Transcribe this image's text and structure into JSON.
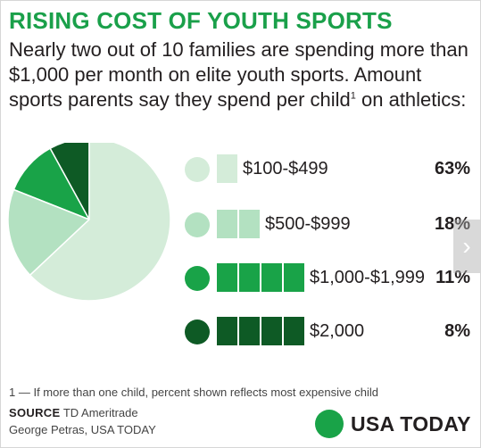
{
  "header": {
    "title": "RISING COST OF YOUTH SPORTS",
    "subtitle_main": "Nearly two out of 10 families are spending more than $1,000 per month on elite youth sports. Amount sports parents say they spend per child",
    "subtitle_sup": "1",
    "subtitle_tail": " on athletics:"
  },
  "colors": {
    "title": "#1aa04a",
    "tier1": "#d4ecd9",
    "tier2": "#b3e1c1",
    "tier3": "#19a348",
    "tier4": "#0e5a25"
  },
  "chart_data": {
    "type": "pie",
    "categories": [
      "$100-$499",
      "$500-$999",
      "$1,000-$1,999",
      "$2,000"
    ],
    "values": [
      63,
      18,
      11,
      8
    ],
    "value_labels": [
      "63%",
      "18%",
      "11%",
      "8%"
    ],
    "unit": "percent"
  },
  "footer": {
    "footnote": "1 — If more than one child, percent shown reflects most expensive child",
    "source_label": "SOURCE",
    "source_text": "TD Ameritrade",
    "credit": "George Petras, USA TODAY",
    "brand": "USA TODAY"
  },
  "nav": {
    "next_icon": "chevron-right-icon",
    "next_glyph": "›"
  }
}
